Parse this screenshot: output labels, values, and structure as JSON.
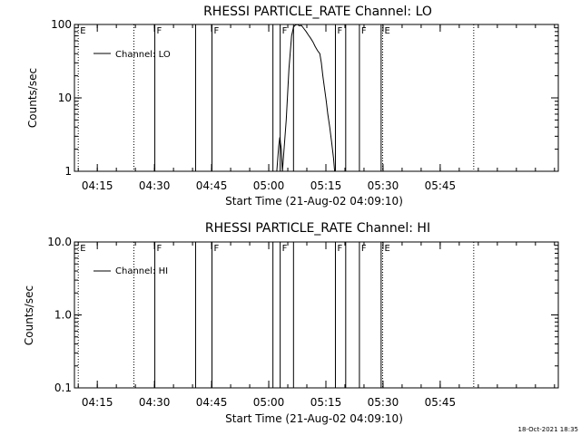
{
  "footer": {
    "timestamp": "18-Oct-2021 18:35"
  },
  "chart_data": [
    {
      "type": "line",
      "title": "RHESSI PARTICLE_RATE Channel: LO",
      "xlabel": "Start Time (21-Aug-02 04:09:10)",
      "ylabel": "Counts/sec",
      "yscale": "log",
      "ylim": [
        1,
        100
      ],
      "xlim_min": [
        9.8,
        136.8
      ],
      "x_ticks": [
        {
          "t": 15.8,
          "label": "04:15"
        },
        {
          "t": 30.8,
          "label": "04:30"
        },
        {
          "t": 45.8,
          "label": "04:45"
        },
        {
          "t": 60.8,
          "label": "05:00"
        },
        {
          "t": 75.8,
          "label": "05:15"
        },
        {
          "t": 90.8,
          "label": "05:30"
        },
        {
          "t": 105.8,
          "label": "05:45"
        }
      ],
      "y_ticks": [
        {
          "v": 1,
          "label": "1"
        },
        {
          "v": 10,
          "label": "10"
        },
        {
          "v": 100,
          "label": "100"
        }
      ],
      "legend": {
        "entry": "Channel: LO",
        "placement": "top-left"
      },
      "markers": [
        {
          "t": 10.8,
          "style": "dotted",
          "label": "E"
        },
        {
          "t": 25.4,
          "style": "dotted",
          "label": ""
        },
        {
          "t": 30.9,
          "style": "solid",
          "label": "F"
        },
        {
          "t": 41.6,
          "style": "solid",
          "label": ""
        },
        {
          "t": 45.9,
          "style": "solid",
          "label": "F"
        },
        {
          "t": 61.9,
          "style": "solid",
          "label": ""
        },
        {
          "t": 63.8,
          "style": "solid",
          "label": "F"
        },
        {
          "t": 67.3,
          "style": "solid",
          "label": ""
        },
        {
          "t": 78.3,
          "style": "solid",
          "label": "F"
        },
        {
          "t": 81.0,
          "style": "solid",
          "label": ""
        },
        {
          "t": 84.6,
          "style": "solid",
          "label": "F"
        },
        {
          "t": 90.3,
          "style": "solid",
          "label": ""
        },
        {
          "t": 90.7,
          "style": "dotted",
          "label": "E"
        },
        {
          "t": 114.6,
          "style": "dotted",
          "label": ""
        }
      ],
      "series": [
        {
          "x": [
            62.9,
            63.4,
            63.7,
            64.1,
            64.4,
            65.4,
            66.1,
            66.8,
            67.3,
            67.8,
            68.3,
            68.8,
            69.4,
            70.0,
            70.6,
            71.2,
            71.8,
            72.4,
            73.0,
            73.6,
            74.2,
            74.6,
            75.0,
            75.4,
            75.9,
            76.3,
            76.8,
            77.3,
            77.8,
            78.1
          ],
          "y": [
            1,
            2.2,
            2.9,
            2.0,
            1,
            5,
            25,
            70,
            92,
            98,
            100,
            96,
            97,
            88,
            80,
            72,
            65,
            58,
            50,
            44,
            40,
            30,
            20,
            14,
            9,
            6,
            4,
            2.5,
            1.5,
            1
          ]
        }
      ]
    },
    {
      "type": "line",
      "title": "RHESSI PARTICLE_RATE Channel: HI",
      "xlabel": "Start Time (21-Aug-02 04:09:10)",
      "ylabel": "Counts/sec",
      "yscale": "log",
      "ylim": [
        0.1,
        10.0
      ],
      "xlim_min": [
        9.8,
        136.8
      ],
      "x_ticks": [
        {
          "t": 15.8,
          "label": "04:15"
        },
        {
          "t": 30.8,
          "label": "04:30"
        },
        {
          "t": 45.8,
          "label": "04:45"
        },
        {
          "t": 60.8,
          "label": "05:00"
        },
        {
          "t": 75.8,
          "label": "05:15"
        },
        {
          "t": 90.8,
          "label": "05:30"
        },
        {
          "t": 105.8,
          "label": "05:45"
        }
      ],
      "y_ticks": [
        {
          "v": 0.1,
          "label": "0.1"
        },
        {
          "v": 1.0,
          "label": "1.0"
        },
        {
          "v": 10.0,
          "label": "10.0"
        }
      ],
      "legend": {
        "entry": "Channel: HI",
        "placement": "top-left"
      },
      "markers": [
        {
          "t": 10.8,
          "style": "dotted",
          "label": "E"
        },
        {
          "t": 25.4,
          "style": "dotted",
          "label": ""
        },
        {
          "t": 30.9,
          "style": "solid",
          "label": "F"
        },
        {
          "t": 41.6,
          "style": "solid",
          "label": ""
        },
        {
          "t": 45.9,
          "style": "solid",
          "label": "F"
        },
        {
          "t": 61.9,
          "style": "solid",
          "label": ""
        },
        {
          "t": 63.8,
          "style": "solid",
          "label": "F"
        },
        {
          "t": 67.3,
          "style": "solid",
          "label": ""
        },
        {
          "t": 78.3,
          "style": "solid",
          "label": "F"
        },
        {
          "t": 81.0,
          "style": "solid",
          "label": ""
        },
        {
          "t": 84.6,
          "style": "solid",
          "label": "F"
        },
        {
          "t": 90.3,
          "style": "solid",
          "label": ""
        },
        {
          "t": 90.7,
          "style": "dotted",
          "label": "E"
        },
        {
          "t": 114.6,
          "style": "dotted",
          "label": ""
        }
      ],
      "series": [
        {
          "x": [],
          "y": []
        }
      ]
    }
  ]
}
